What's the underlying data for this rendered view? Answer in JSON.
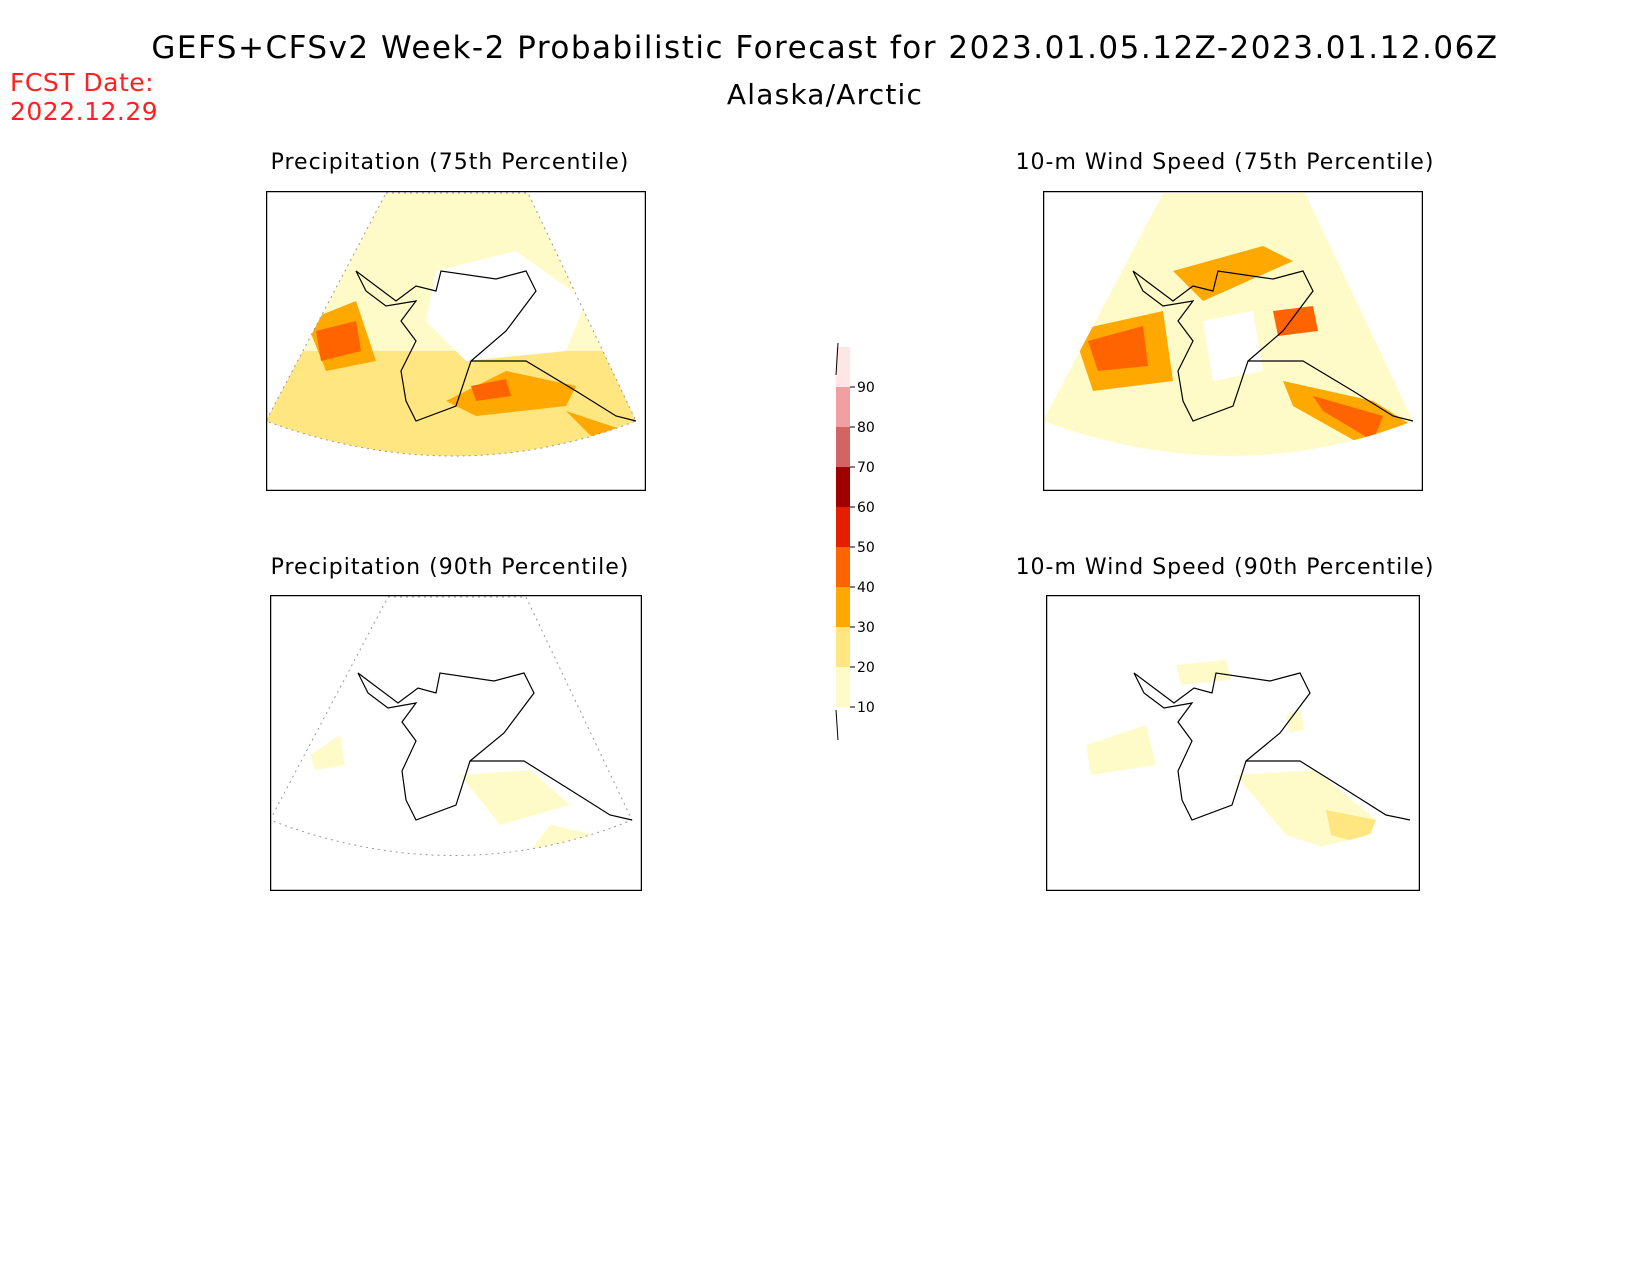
{
  "header": {
    "title": "GEFS+CFSv2 Week-2 Probabilistic Forecast for 2023.01.05.12Z-2023.01.12.06Z",
    "subtitle": "Alaska/Arctic",
    "fcst_label": "FCST Date:",
    "fcst_date": "2022.12.29"
  },
  "panels": [
    {
      "title": "Precipitation (75th Percentile)",
      "intensity": "high-south"
    },
    {
      "title": "10-m Wind Speed (75th Percentile)",
      "intensity": "high-mixed"
    },
    {
      "title": "Precipitation (90th Percentile)",
      "intensity": "low"
    },
    {
      "title": "10-m Wind Speed (90th Percentile)",
      "intensity": "low"
    }
  ],
  "legend": {
    "levels": [
      "10",
      "20",
      "30",
      "40",
      "50",
      "60",
      "70",
      "80",
      "90"
    ],
    "colors": [
      "#fffbc8",
      "#ffe680",
      "#ffa800",
      "#ff6400",
      "#e61e00",
      "#a00000",
      "#d26464",
      "#f0a0a0",
      "#ffe6e6"
    ]
  }
}
